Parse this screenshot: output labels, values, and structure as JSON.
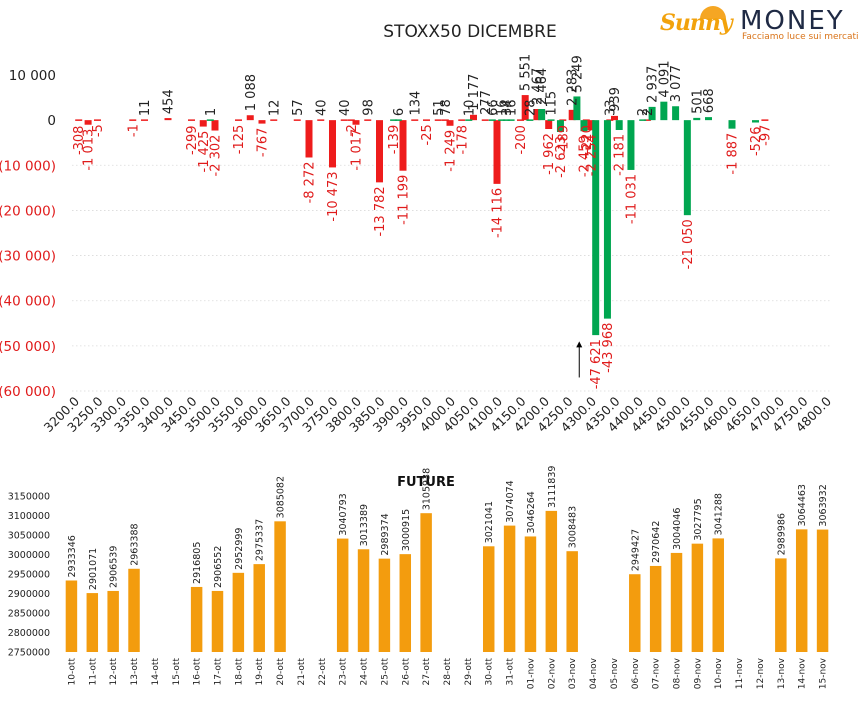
{
  "logo": {
    "brand_left": "Sunny",
    "brand_right": "MONEY",
    "tagline": "Facciamo luce sui mercati"
  },
  "colors": {
    "negative_bar": "#ee1c1c",
    "positive_bar": "#00a650",
    "future_bar": "#f39c0e",
    "negative_label": "#e01b1b",
    "positive_label": "#222222"
  },
  "chart_data": [
    {
      "type": "bar",
      "title": "STOXX50 DICEMBRE",
      "xlabel": "",
      "ylabel": "",
      "ylim": [
        -60000,
        10000
      ],
      "yticks": [
        10000,
        0,
        -10000,
        -20000,
        -30000,
        -40000,
        -50000,
        -60000
      ],
      "ytick_labels": [
        "10 000",
        "0",
        "(10 000)",
        "(20 000)",
        "(30 000)",
        "(40 000)",
        "(50 000)",
        "(60 000)"
      ],
      "xlim": [
        3200,
        4800
      ],
      "xtick_labels": [
        "3200.0",
        "3250.0",
        "3300.0",
        "3350.0",
        "3400.0",
        "3450.0",
        "3500.0",
        "3550.0",
        "3600.0",
        "3650.0",
        "3700.0",
        "3750.0",
        "3800.0",
        "3850.0",
        "3900.0",
        "3950.0",
        "4000.0",
        "4050.0",
        "4100.0",
        "4150.0",
        "4200.0",
        "4250.0",
        "4300.0",
        "4350.0",
        "4400.0",
        "4450.0",
        "4500.0",
        "4550.0",
        "4600.0",
        "4650.0",
        "4700.0",
        "4750.0",
        "4800.0"
      ],
      "grid": "horizontal-dotted",
      "annotation": {
        "type": "arrow-up",
        "x": 4275,
        "y_from": -57000,
        "y_to": -49000
      },
      "series": [
        {
          "name": "red",
          "color": "red",
          "points": [
            {
              "x": 3210,
              "y": -308,
              "label": "-308"
            },
            {
              "x": 3230,
              "y": -1013,
              "label": "-1 013"
            },
            {
              "x": 3250,
              "y": -5,
              "label": "-5"
            },
            {
              "x": 3325,
              "y": -1,
              "label": "-1"
            },
            {
              "x": 3350,
              "y": 11,
              "label": "11"
            },
            {
              "x": 3400,
              "y": 454,
              "label": "454"
            },
            {
              "x": 3450,
              "y": -299,
              "label": "-299"
            },
            {
              "x": 3475,
              "y": -1425,
              "label": "-1 425"
            },
            {
              "x": 3500,
              "y": -2302,
              "label": "-2 302"
            },
            {
              "x": 3550,
              "y": -125,
              "label": "-125"
            },
            {
              "x": 3575,
              "y": 1088,
              "label": "1 088"
            },
            {
              "x": 3600,
              "y": -767,
              "label": "-767"
            },
            {
              "x": 3625,
              "y": 12,
              "label": "12"
            },
            {
              "x": 3675,
              "y": 57,
              "label": "57"
            },
            {
              "x": 3700,
              "y": -8272,
              "label": "-8 272"
            },
            {
              "x": 3725,
              "y": 40,
              "label": "40"
            },
            {
              "x": 3750,
              "y": -10473,
              "label": "-10 473"
            },
            {
              "x": 3775,
              "y": 40,
              "label": "40"
            },
            {
              "x": 3790,
              "y": -2,
              "label": "-2"
            },
            {
              "x": 3800,
              "y": -1017,
              "label": "-1 017"
            },
            {
              "x": 3825,
              "y": 98,
              "label": "98"
            },
            {
              "x": 3850,
              "y": -13782,
              "label": "-13 782"
            },
            {
              "x": 3900,
              "y": -11199,
              "label": "-11 199"
            },
            {
              "x": 3925,
              "y": 134,
              "label": "134"
            },
            {
              "x": 3950,
              "y": -25,
              "label": "-25"
            },
            {
              "x": 3975,
              "y": 51,
              "label": "51"
            },
            {
              "x": 3990,
              "y": 78,
              "label": "78"
            },
            {
              "x": 4000,
              "y": -1249,
              "label": "-1 249"
            },
            {
              "x": 4025,
              "y": -178,
              "label": "-178"
            },
            {
              "x": 4050,
              "y": 1177,
              "label": "1 177"
            },
            {
              "x": 4075,
              "y": 277,
              "label": "277"
            },
            {
              "x": 4100,
              "y": -14116,
              "label": "-14 116"
            },
            {
              "x": 4150,
              "y": -200,
              "label": "-200"
            },
            {
              "x": 4160,
              "y": 5551,
              "label": "5 551"
            },
            {
              "x": 4185,
              "y": 2467,
              "label": "2 467"
            },
            {
              "x": 4210,
              "y": -1962,
              "label": "-1 962"
            },
            {
              "x": 4240,
              "y": -189,
              "label": "-189"
            },
            {
              "x": 4260,
              "y": 2283,
              "label": "2 283"
            },
            {
              "x": 4290,
              "y": -220,
              "label": "-220"
            },
            {
              "x": 4300,
              "y": -2254,
              "label": "-2 254"
            },
            {
              "x": 4340,
              "y": 33,
              "label": "33"
            },
            {
              "x": 4350,
              "y": 939,
              "label": "939"
            },
            {
              "x": 4420,
              "y": 2,
              "label": "2"
            },
            {
              "x": 4670,
              "y": -97,
              "label": "-97"
            }
          ]
        },
        {
          "name": "green",
          "color": "green",
          "points": [
            {
              "x": 3490,
              "y": 1,
              "label": "1"
            },
            {
              "x": 3880,
              "y": -139,
              "label": "-139"
            },
            {
              "x": 3890,
              "y": 6,
              "label": "6"
            },
            {
              "x": 4040,
              "y": 10,
              "label": "10"
            },
            {
              "x": 4090,
              "y": 66,
              "label": "66"
            },
            {
              "x": 4110,
              "y": 16,
              "label": "16"
            },
            {
              "x": 4120,
              "y": 34,
              "label": "34"
            },
            {
              "x": 4130,
              "y": 16,
              "label": "16"
            },
            {
              "x": 4170,
              "y": 28,
              "label": "28"
            },
            {
              "x": 4195,
              "y": 2464,
              "label": "2 464"
            },
            {
              "x": 4215,
              "y": 115,
              "label": "115"
            },
            {
              "x": 4235,
              "y": -2623,
              "label": "-2 623"
            },
            {
              "x": 4270,
              "y": 5249,
              "label": "5 249"
            },
            {
              "x": 4285,
              "y": -2459,
              "label": "-2 459"
            },
            {
              "x": 4310,
              "y": -47621,
              "label": "-47 621"
            },
            {
              "x": 4335,
              "y": -43968,
              "label": "-43 968"
            },
            {
              "x": 4360,
              "y": -2181,
              "label": "-2 181"
            },
            {
              "x": 4385,
              "y": -11031,
              "label": "-11 031"
            },
            {
              "x": 4410,
              "y": 2,
              "label": "2"
            },
            {
              "x": 4430,
              "y": 2937,
              "label": "2 937"
            },
            {
              "x": 4455,
              "y": 4091,
              "label": "4 091"
            },
            {
              "x": 4480,
              "y": 3077,
              "label": "3 077"
            },
            {
              "x": 4505,
              "y": -21050,
              "label": "-21 050"
            },
            {
              "x": 4525,
              "y": 501,
              "label": "501"
            },
            {
              "x": 4550,
              "y": 668,
              "label": "668"
            },
            {
              "x": 4600,
              "y": -1887,
              "label": "-1 887"
            },
            {
              "x": 4650,
              "y": -526,
              "label": "-526"
            }
          ]
        }
      ]
    },
    {
      "type": "bar",
      "title": "FUTURE",
      "xlabel": "",
      "ylabel": "",
      "ylim": [
        2750000,
        3150000
      ],
      "yticks": [
        3150000,
        3100000,
        3050000,
        3000000,
        2950000,
        2900000,
        2850000,
        2800000,
        2750000
      ],
      "ytick_labels": [
        "3150000",
        "3100000",
        "3050000",
        "3000000",
        "2950000",
        "2900000",
        "2850000",
        "2800000",
        "2750000"
      ],
      "grid": "none",
      "categories": [
        "10-ott",
        "11-ott",
        "12-ott",
        "13-ott",
        "14-ott",
        "15-ott",
        "16-ott",
        "17-ott",
        "18-ott",
        "19-ott",
        "20-ott",
        "21-ott",
        "22-ott",
        "23-ott",
        "24-ott",
        "25-ott",
        "26-ott",
        "27-ott",
        "28-ott",
        "29-ott",
        "30-ott",
        "31-ott",
        "01-nov",
        "02-nov",
        "03-nov",
        "04-nov",
        "05-nov",
        "06-nov",
        "07-nov",
        "08-nov",
        "09-nov",
        "10-nov",
        "11-nov",
        "12-nov",
        "13-nov",
        "14-nov",
        "15-nov"
      ],
      "values": [
        2933346,
        2901071,
        2906539,
        2963388,
        null,
        null,
        2916805,
        2906552,
        2952999,
        2975337,
        3085082,
        null,
        null,
        3040793,
        3013389,
        2989374,
        3000915,
        3105938,
        null,
        null,
        3021041,
        3074074,
        3046264,
        3111839,
        3008483,
        null,
        null,
        2949427,
        2970642,
        3004046,
        3027795,
        3041288,
        null,
        null,
        2989986,
        3064463,
        3063932
      ],
      "value_labels": [
        "2933346",
        "2901071",
        "2906539",
        "2963388",
        "",
        "",
        "2916805",
        "2906552",
        "2952999",
        "2975337",
        "3085082",
        "",
        "",
        "3040793",
        "3013389",
        "2989374",
        "3000915",
        "3105938",
        "",
        "",
        "3021041",
        "3074074",
        "3046264",
        "3111839",
        "3008483",
        "",
        "",
        "2949427",
        "2970642",
        "3004046",
        "3027795",
        "3041288",
        "",
        "",
        "2989986",
        "3064463",
        "3063932"
      ]
    }
  ]
}
